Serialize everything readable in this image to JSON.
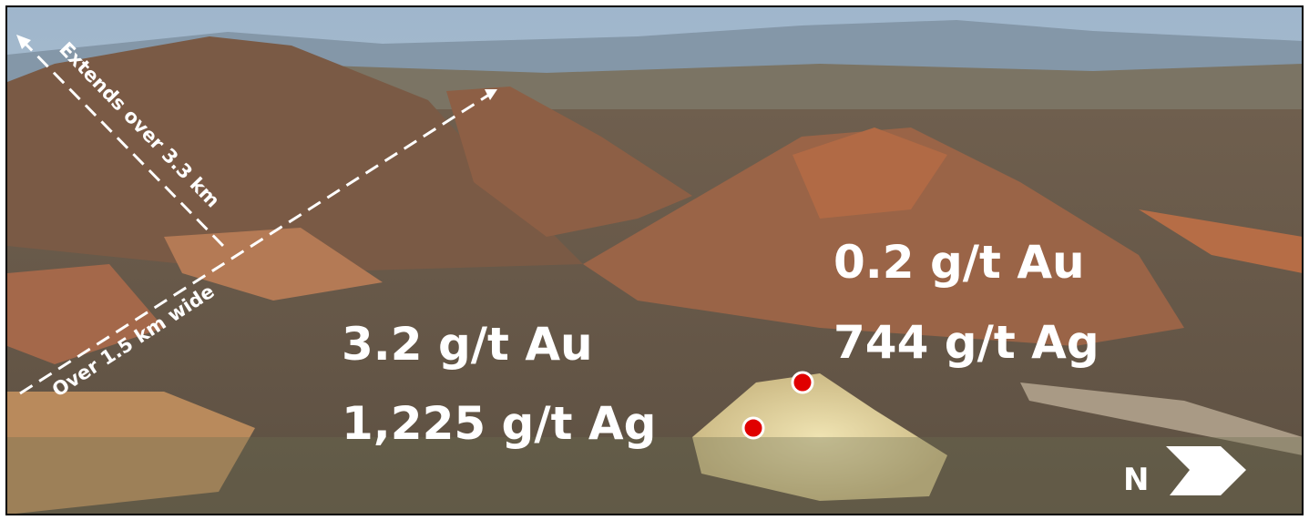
{
  "annotations": {
    "length": "Extends over 3.3 km",
    "width": "Over 1.5 km wide",
    "sample_1": {
      "au": "3.2 g/t Au",
      "ag": "1,225 g/t Ag"
    },
    "sample_2": {
      "au": "0.2 g/t Au",
      "ag": "744 g/t Ag"
    },
    "north": "N"
  }
}
